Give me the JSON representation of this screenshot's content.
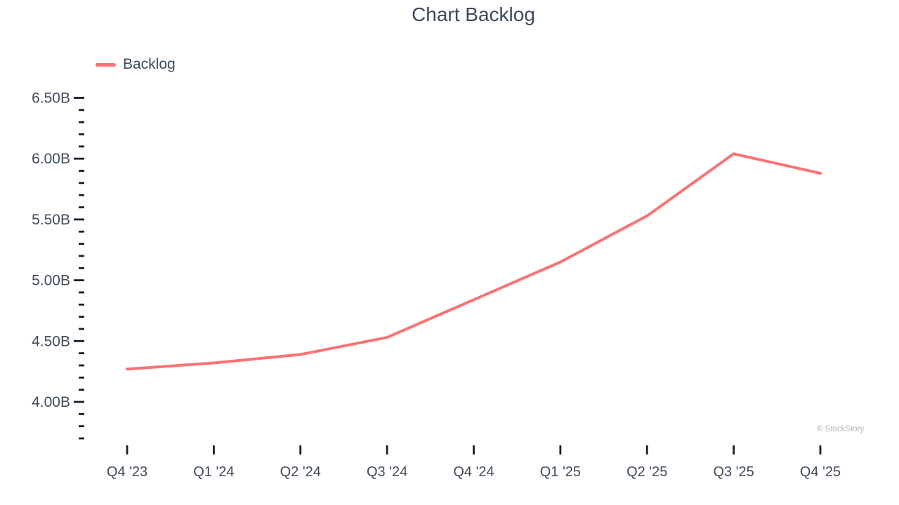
{
  "title": "Chart Backlog",
  "legend": {
    "label": "Backlog"
  },
  "watermark": "© StockStory",
  "colors": {
    "line": "#fa7373",
    "text": "#3f4b5a",
    "tick": "#1a1d22",
    "watermark": "#b2b7bd"
  },
  "chart_data": {
    "type": "line",
    "title": "Chart Backlog",
    "categories": [
      "Q4 '23",
      "Q1 '24",
      "Q2 '24",
      "Q3 '24",
      "Q4 '24",
      "Q1 '25",
      "Q2 '25",
      "Q3 '25",
      "Q4 '25"
    ],
    "series": [
      {
        "name": "Backlog",
        "color": "#fa7373",
        "values": [
          4.27,
          4.32,
          4.39,
          4.53,
          4.84,
          5.15,
          5.53,
          6.04,
          5.88
        ]
      }
    ],
    "unit": "B (billions)",
    "xlabel": "",
    "ylabel": "",
    "ylim": [
      3.7,
      6.6
    ],
    "y_major_ticks": {
      "values": [
        6.5,
        6.0,
        5.5,
        5.0,
        4.5,
        4.0
      ],
      "labels": [
        "6.50B",
        "6.00B",
        "5.50B",
        "5.00B",
        "4.50B",
        "4.00B"
      ]
    },
    "y_minor_step": 0.1,
    "y_minor_range": [
      3.7,
      6.5
    ],
    "grid": false,
    "legend_position": "top-left",
    "annotations": [
      "© StockStory"
    ]
  }
}
